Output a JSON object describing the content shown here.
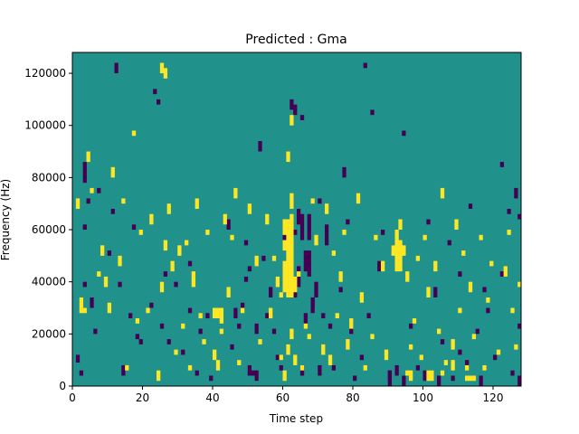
{
  "chart_data": {
    "type": "heatmap",
    "title": "Predicted : Gma",
    "xlabel": "Time step",
    "ylabel": "Frequency (Hz)",
    "xlim": [
      0,
      128
    ],
    "ylim": [
      0,
      128000
    ],
    "xticks": [
      0,
      20,
      40,
      60,
      80,
      100,
      120
    ],
    "yticks": [
      0,
      20000,
      40000,
      60000,
      80000,
      100000,
      120000
    ],
    "xtick_labels": [
      "0",
      "20",
      "40",
      "60",
      "80",
      "100",
      "120"
    ],
    "ytick_labels": [
      "0",
      "20000",
      "40000",
      "60000",
      "80000",
      "100000",
      "120000"
    ],
    "n_time_steps": 128,
    "n_freq_bins": 128,
    "colors": {
      "background": "#21918c",
      "low": "#440154",
      "high": "#fde725"
    },
    "grid": false,
    "cells_low": [
      [
        1,
        9,
        12
      ],
      [
        2,
        4,
        6
      ],
      [
        3,
        78,
        86
      ],
      [
        3,
        60,
        62
      ],
      [
        3,
        38,
        40
      ],
      [
        5,
        30,
        34
      ],
      [
        4,
        70,
        72
      ],
      [
        7,
        74,
        76
      ],
      [
        6,
        20,
        22
      ],
      [
        10,
        50,
        52
      ],
      [
        11,
        66,
        68
      ],
      [
        12,
        120,
        124
      ],
      [
        13,
        38,
        40
      ],
      [
        16,
        26,
        28
      ],
      [
        14,
        4,
        8
      ],
      [
        17,
        60,
        62
      ],
      [
        18,
        18,
        20
      ],
      [
        19,
        16,
        18
      ],
      [
        22,
        30,
        32
      ],
      [
        25,
        22,
        24
      ],
      [
        23,
        112,
        114
      ],
      [
        24,
        108,
        110
      ],
      [
        26,
        42,
        44
      ],
      [
        27,
        16,
        18
      ],
      [
        29,
        38,
        40
      ],
      [
        31,
        12,
        14
      ],
      [
        33,
        46,
        48
      ],
      [
        33,
        28,
        30
      ],
      [
        35,
        4,
        6
      ],
      [
        36,
        20,
        22
      ],
      [
        38,
        26,
        28
      ],
      [
        39,
        2,
        4
      ],
      [
        47,
        22,
        24
      ],
      [
        48,
        30,
        32
      ],
      [
        49,
        54,
        56
      ],
      [
        49,
        40,
        42
      ],
      [
        50,
        44,
        46
      ],
      [
        51,
        4,
        6
      ],
      [
        52,
        20,
        24
      ],
      [
        53,
        90,
        94
      ],
      [
        54,
        48,
        50
      ],
      [
        55,
        26,
        28
      ],
      [
        57,
        20,
        22
      ],
      [
        56,
        34,
        38
      ],
      [
        58,
        10,
        12
      ],
      [
        59,
        6,
        8
      ],
      [
        60,
        56,
        58
      ],
      [
        63,
        58,
        60
      ],
      [
        63,
        34,
        38
      ],
      [
        64,
        44,
        46
      ],
      [
        65,
        102,
        104
      ],
      [
        65,
        4,
        8
      ],
      [
        66,
        24,
        28
      ],
      [
        67,
        44,
        52
      ],
      [
        67,
        56,
        66
      ],
      [
        68,
        28,
        34
      ],
      [
        69,
        34,
        40
      ],
      [
        70,
        70,
        72
      ],
      [
        70,
        4,
        8
      ],
      [
        71,
        26,
        28
      ],
      [
        72,
        54,
        62
      ],
      [
        73,
        22,
        24
      ],
      [
        74,
        6,
        8
      ],
      [
        76,
        36,
        38
      ],
      [
        77,
        80,
        84
      ],
      [
        78,
        62,
        64
      ],
      [
        79,
        20,
        22
      ],
      [
        80,
        2,
        4
      ],
      [
        82,
        10,
        12
      ],
      [
        83,
        122,
        124
      ],
      [
        84,
        26,
        28
      ],
      [
        85,
        104,
        106
      ],
      [
        87,
        44,
        48
      ],
      [
        88,
        58,
        60
      ],
      [
        90,
        0,
        6
      ],
      [
        91,
        52,
        54
      ],
      [
        92,
        4,
        8
      ],
      [
        94,
        96,
        98
      ],
      [
        96,
        22,
        24
      ],
      [
        98,
        6,
        8
      ],
      [
        101,
        62,
        64
      ],
      [
        103,
        34,
        38
      ],
      [
        105,
        16,
        18
      ],
      [
        107,
        54,
        56
      ],
      [
        108,
        2,
        4
      ],
      [
        110,
        12,
        14
      ],
      [
        110,
        42,
        44
      ],
      [
        112,
        8,
        10
      ],
      [
        113,
        68,
        70
      ],
      [
        115,
        20,
        22
      ],
      [
        117,
        36,
        38
      ],
      [
        116,
        0,
        4
      ],
      [
        118,
        28,
        30
      ],
      [
        120,
        10,
        12
      ],
      [
        122,
        84,
        86
      ],
      [
        122,
        42,
        44
      ],
      [
        124,
        66,
        68
      ],
      [
        125,
        4,
        6
      ],
      [
        126,
        72,
        76
      ],
      [
        127,
        22,
        24
      ],
      [
        127,
        64,
        66
      ],
      [
        127,
        0,
        4
      ]
    ],
    "cells_high": [
      [
        1,
        68,
        72
      ],
      [
        2,
        28,
        34
      ],
      [
        3,
        28,
        30
      ],
      [
        4,
        86,
        90
      ],
      [
        5,
        74,
        76
      ],
      [
        7,
        42,
        44
      ],
      [
        8,
        50,
        54
      ],
      [
        9,
        38,
        42
      ],
      [
        10,
        28,
        32
      ],
      [
        11,
        80,
        84
      ],
      [
        13,
        46,
        50
      ],
      [
        14,
        70,
        72
      ],
      [
        15,
        6,
        8
      ],
      [
        17,
        96,
        98
      ],
      [
        18,
        24,
        26
      ],
      [
        19,
        58,
        60
      ],
      [
        21,
        28,
        30
      ],
      [
        22,
        62,
        66
      ],
      [
        24,
        2,
        6
      ],
      [
        25,
        36,
        40
      ],
      [
        26,
        52,
        56
      ],
      [
        27,
        66,
        70
      ],
      [
        28,
        44,
        48
      ],
      [
        29,
        12,
        14
      ],
      [
        30,
        50,
        54
      ],
      [
        31,
        22,
        24
      ],
      [
        32,
        54,
        56
      ],
      [
        33,
        6,
        8
      ],
      [
        34,
        38,
        44
      ],
      [
        35,
        68,
        72
      ],
      [
        36,
        26,
        28
      ],
      [
        37,
        16,
        18
      ],
      [
        38,
        58,
        60
      ],
      [
        40,
        10,
        14
      ],
      [
        41,
        6,
        10
      ],
      [
        42,
        20,
        22
      ],
      [
        43,
        62,
        66
      ],
      [
        44,
        34,
        38
      ],
      [
        45,
        56,
        58
      ],
      [
        46,
        72,
        76
      ],
      [
        47,
        8,
        10
      ],
      [
        48,
        28,
        30
      ],
      [
        50,
        66,
        70
      ],
      [
        52,
        46,
        50
      ],
      [
        53,
        16,
        18
      ],
      [
        55,
        62,
        66
      ],
      [
        56,
        26,
        30
      ],
      [
        57,
        48,
        50
      ],
      [
        58,
        38,
        42
      ],
      [
        59,
        34,
        36
      ],
      [
        59,
        10,
        12
      ],
      [
        60,
        52,
        56
      ],
      [
        62,
        58,
        62
      ],
      [
        63,
        8,
        12
      ],
      [
        64,
        42,
        44
      ],
      [
        65,
        6,
        8
      ],
      [
        66,
        22,
        24
      ],
      [
        67,
        18,
        20
      ],
      [
        68,
        70,
        72
      ],
      [
        69,
        54,
        58
      ],
      [
        71,
        12,
        16
      ],
      [
        72,
        66,
        70
      ],
      [
        73,
        8,
        12
      ],
      [
        74,
        50,
        52
      ],
      [
        75,
        26,
        28
      ],
      [
        76,
        40,
        44
      ],
      [
        77,
        58,
        60
      ],
      [
        78,
        14,
        18
      ],
      [
        79,
        22,
        26
      ],
      [
        81,
        70,
        74
      ],
      [
        82,
        32,
        36
      ],
      [
        83,
        6,
        8
      ],
      [
        85,
        18,
        20
      ],
      [
        86,
        56,
        58
      ],
      [
        88,
        44,
        48
      ],
      [
        89,
        10,
        14
      ],
      [
        91,
        50,
        54
      ],
      [
        93,
        60,
        64
      ],
      [
        95,
        40,
        44
      ],
      [
        96,
        14,
        16
      ],
      [
        97,
        24,
        26
      ],
      [
        98,
        48,
        50
      ],
      [
        99,
        10,
        12
      ],
      [
        100,
        56,
        58
      ],
      [
        101,
        34,
        38
      ],
      [
        102,
        2,
        4
      ],
      [
        103,
        44,
        48
      ],
      [
        104,
        20,
        22
      ],
      [
        105,
        72,
        76
      ],
      [
        106,
        8,
        10
      ],
      [
        108,
        14,
        18
      ],
      [
        109,
        60,
        64
      ],
      [
        110,
        28,
        30
      ],
      [
        111,
        50,
        52
      ],
      [
        112,
        6,
        8
      ],
      [
        113,
        36,
        40
      ],
      [
        114,
        18,
        20
      ],
      [
        116,
        56,
        58
      ],
      [
        117,
        6,
        8
      ],
      [
        118,
        32,
        34
      ],
      [
        119,
        46,
        48
      ],
      [
        121,
        12,
        14
      ],
      [
        123,
        42,
        46
      ],
      [
        124,
        58,
        60
      ],
      [
        125,
        28,
        30
      ],
      [
        126,
        14,
        16
      ],
      [
        127,
        38,
        40
      ]
    ],
    "cells_high_dense": [
      [
        25,
        120,
        124
      ],
      [
        26,
        118,
        122
      ],
      [
        40,
        26,
        30
      ],
      [
        41,
        26,
        30
      ],
      [
        42,
        24,
        30
      ],
      [
        60,
        36,
        48
      ],
      [
        60,
        58,
        64
      ],
      [
        61,
        34,
        64
      ],
      [
        62,
        34,
        66
      ],
      [
        62,
        18,
        22
      ],
      [
        61,
        12,
        16
      ],
      [
        60,
        2,
        6
      ],
      [
        63,
        36,
        42
      ],
      [
        62,
        68,
        74
      ],
      [
        61,
        86,
        90
      ],
      [
        62,
        100,
        104
      ],
      [
        92,
        44,
        60
      ],
      [
        93,
        44,
        56
      ],
      [
        94,
        50,
        54
      ],
      [
        95,
        4,
        6
      ],
      [
        96,
        2,
        6
      ],
      [
        101,
        2,
        6
      ],
      [
        102,
        4,
        6
      ],
      [
        112,
        2,
        4
      ],
      [
        113,
        2,
        4
      ],
      [
        114,
        2,
        4
      ],
      [
        105,
        4,
        6
      ],
      [
        108,
        6,
        10
      ]
    ],
    "cells_low_dense": [
      [
        64,
        62,
        68
      ],
      [
        65,
        56,
        66
      ],
      [
        66,
        44,
        52
      ],
      [
        64,
        38,
        42
      ],
      [
        67,
        42,
        46
      ],
      [
        68,
        30,
        34
      ],
      [
        62,
        106,
        110
      ],
      [
        63,
        104,
        108
      ],
      [
        100,
        2,
        6
      ],
      [
        104,
        0,
        4
      ],
      [
        94,
        0,
        4
      ],
      [
        90,
        2,
        6
      ],
      [
        52,
        2,
        6
      ],
      [
        50,
        4,
        8
      ],
      [
        46,
        26,
        30
      ],
      [
        45,
        14,
        16
      ],
      [
        44,
        60,
        64
      ]
    ]
  }
}
